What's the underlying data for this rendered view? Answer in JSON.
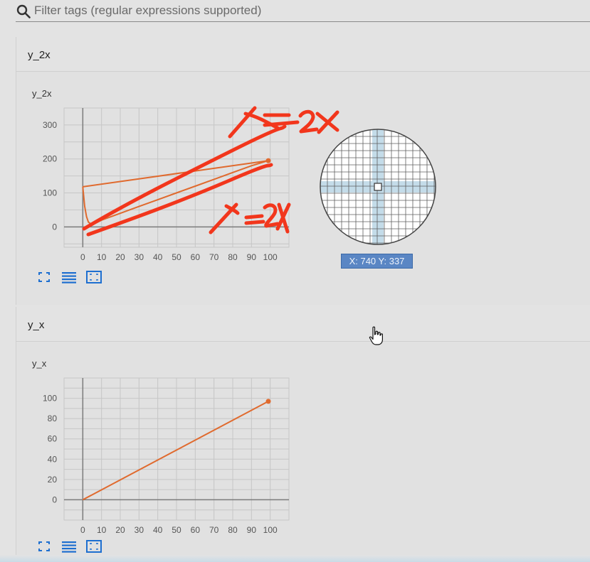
{
  "search": {
    "placeholder": "Filter tags (regular expressions supported)"
  },
  "cards": [
    {
      "header": "y_2x",
      "chart_title": "y_2x"
    },
    {
      "header": "y_x",
      "chart_title": "y_x"
    }
  ],
  "coord_readout": "X: 740 Y: 337",
  "annotations": {
    "upper": "y=2x",
    "lower": "y=2x"
  },
  "colors": {
    "series": "#e06a2e",
    "ink": "#f2361c",
    "badge": "#5a86c4",
    "button": "#1e6fd0"
  },
  "icons": [
    "search-icon",
    "fit-domain-icon",
    "toggle-log-scale-icon",
    "expand-icon",
    "pointer-cursor-icon"
  ],
  "chart_data": [
    {
      "type": "line",
      "title": "y_2x",
      "xlabel": "",
      "ylabel": "",
      "x_ticks": [
        0,
        10,
        20,
        30,
        40,
        50,
        60,
        70,
        80,
        90,
        100
      ],
      "y_ticks": [
        0,
        100,
        200,
        300
      ],
      "xlim": [
        -10,
        110
      ],
      "ylim": [
        -60,
        350
      ],
      "grid": true,
      "series": [
        {
          "x": [
            0,
            1,
            2,
            3,
            5,
            10,
            20,
            30,
            40,
            50,
            60,
            70,
            80,
            90,
            99,
            0,
            99
          ],
          "y": [
            118,
            60,
            30,
            14,
            6,
            20,
            40,
            60,
            80,
            100,
            120,
            140,
            160,
            180,
            195,
            118,
            195
          ]
        }
      ]
    },
    {
      "type": "line",
      "title": "y_x",
      "xlabel": "",
      "ylabel": "",
      "x_ticks": [
        0,
        10,
        20,
        30,
        40,
        50,
        60,
        70,
        80,
        90,
        100
      ],
      "y_ticks": [
        0,
        20,
        40,
        60,
        80,
        100
      ],
      "xlim": [
        -10,
        110
      ],
      "ylim": [
        -20,
        120
      ],
      "grid": true,
      "series": [
        {
          "x": [
            0,
            99
          ],
          "y": [
            0,
            97
          ]
        }
      ]
    }
  ]
}
